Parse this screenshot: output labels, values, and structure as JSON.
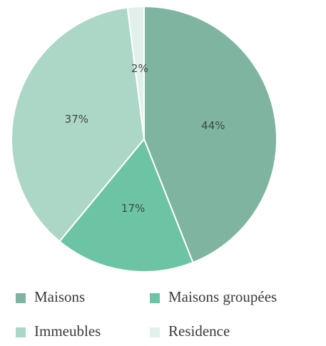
{
  "chart_data": {
    "type": "pie",
    "categories": [
      "Maisons",
      "Maisons groupées",
      "Immeubles",
      "Residence"
    ],
    "values": [
      44,
      17,
      37,
      2
    ],
    "value_labels": [
      "44%",
      "17%",
      "37%",
      "2%"
    ],
    "colors": [
      "#7fb5a0",
      "#6dc4a5",
      "#acd7c6",
      "#e2f0eb"
    ],
    "start_angle": 0,
    "direction": "clockwise"
  }
}
